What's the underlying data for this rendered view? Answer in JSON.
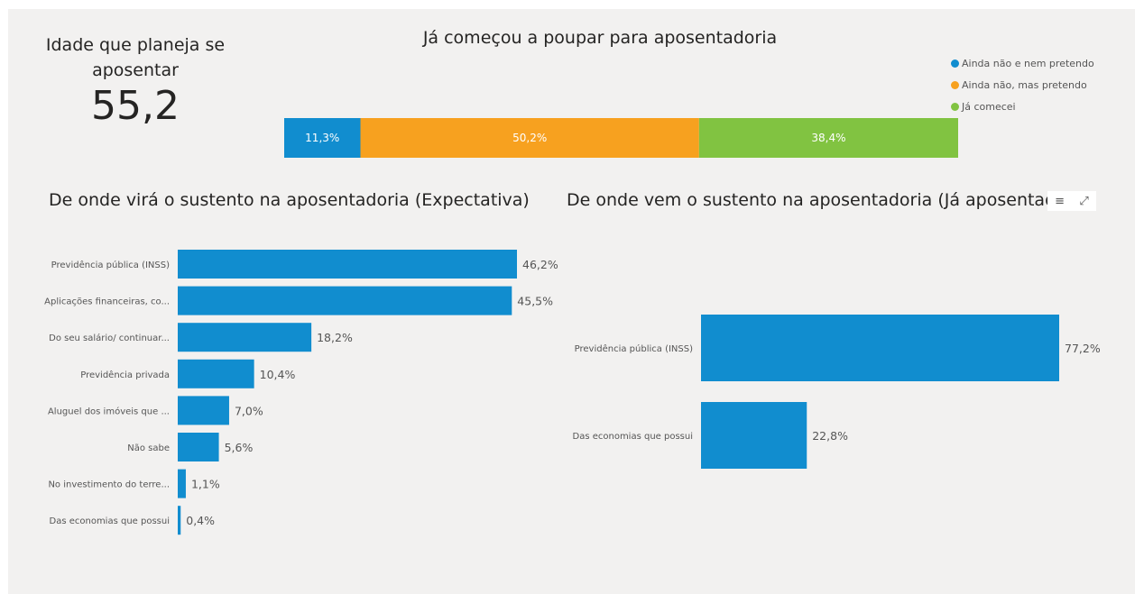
{
  "kpi": {
    "title": "Idade que planeja se aposentar",
    "value": "55,2"
  },
  "savings": {
    "title": "Já começou a poupar para aposentadoria",
    "legend": [
      {
        "label": "Ainda não e nem pretendo",
        "color": "#118dcf"
      },
      {
        "label": "Ainda não, mas pretendo",
        "color": "#f7a11f"
      },
      {
        "label": "Já comecei",
        "color": "#81c341"
      }
    ]
  },
  "expectation": {
    "title": "De onde virá o sustento na aposentadoria (Expectativa)"
  },
  "retired": {
    "title": "De onde vem o sustento na aposentadoria (Já aposentado)"
  },
  "visual_header": {
    "filter_icon": "filter-icon",
    "focus_icon": "focus-mode-icon"
  },
  "chart_data": [
    {
      "type": "bar",
      "orientation": "horizontal-stacked-100",
      "title": "Já começou a poupar para aposentadoria",
      "categories": [
        ""
      ],
      "series": [
        {
          "name": "Ainda não e nem pretendo",
          "values": [
            11.3
          ],
          "label": "11,3%",
          "color": "#118dcf"
        },
        {
          "name": "Ainda não, mas pretendo",
          "values": [
            50.2
          ],
          "label": "50,2%",
          "color": "#f7a11f"
        },
        {
          "name": "Já comecei",
          "values": [
            38.4
          ],
          "label": "38,4%",
          "color": "#81c341"
        }
      ],
      "legend": "right"
    },
    {
      "type": "bar",
      "orientation": "horizontal",
      "title": "De onde virá o sustento na aposentadoria (Expectativa)",
      "categories": [
        "Previdência pública (INSS)",
        "Aplicações financeiras, co...",
        "Do seu salário/ continuar...",
        "Previdência privada",
        "Aluguel dos imóveis que ...",
        "Não sabe",
        "No investimento do terre...",
        "Das economias que possui"
      ],
      "values": [
        46.2,
        45.5,
        18.2,
        10.4,
        7.0,
        5.6,
        1.1,
        0.4
      ],
      "value_labels": [
        "46,2%",
        "45,5%",
        "18,2%",
        "10,4%",
        "7,0%",
        "5,6%",
        "1,1%",
        "0,4%"
      ],
      "color": "#118dcf",
      "xlim": [
        0,
        46.2
      ]
    },
    {
      "type": "bar",
      "orientation": "horizontal",
      "title": "De onde vem o sustento na aposentadoria (Já aposentado)",
      "categories": [
        "Previdência pública (INSS)",
        "Das economias que possui"
      ],
      "values": [
        77.2,
        22.8
      ],
      "value_labels": [
        "77,2%",
        "22,8%"
      ],
      "color": "#118dcf",
      "xlim": [
        0,
        77.2
      ]
    }
  ]
}
